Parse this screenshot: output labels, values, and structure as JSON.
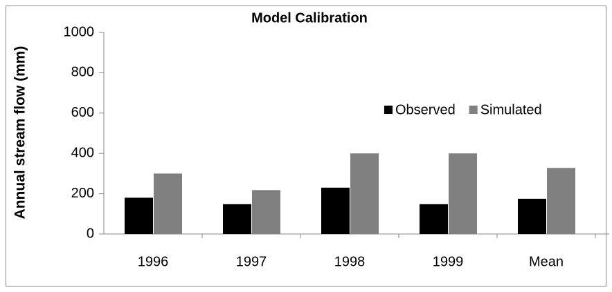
{
  "chart_data": {
    "type": "bar",
    "title": "Model Calibration",
    "y_label": "Annual stream flow (mm)",
    "categories": [
      "1996",
      "1997",
      "1998",
      "1999",
      "Mean"
    ],
    "series": [
      {
        "name": "Observed",
        "color": "#000000",
        "values": [
          180,
          148,
          230,
          148,
          175
        ]
      },
      {
        "name": "Simulated",
        "color": "#808080",
        "values": [
          300,
          218,
          400,
          400,
          328
        ]
      }
    ],
    "ylim": [
      0,
      1000
    ],
    "yticks": [
      0,
      200,
      400,
      600,
      800,
      1000
    ],
    "legend": "upper right"
  }
}
